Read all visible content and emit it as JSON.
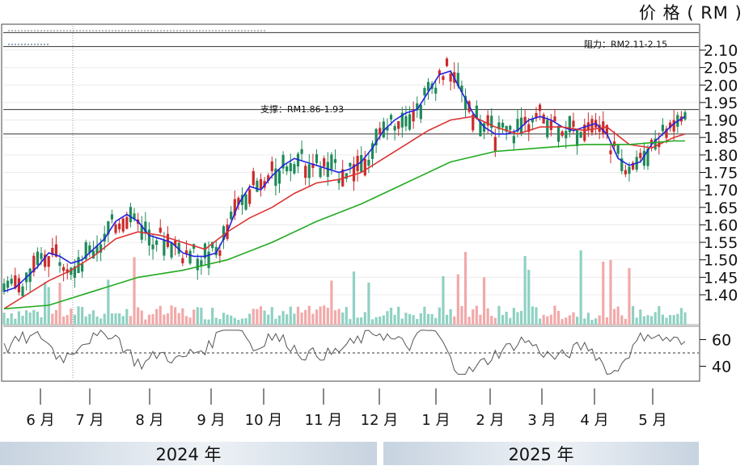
{
  "unit_label": "价 格 ( RM )",
  "years": [
    "2024 年",
    "2025 年"
  ],
  "chart_data": {
    "type": "line",
    "title": "",
    "ylabel": "价 格 ( RM )",
    "ylim": [
      1.35,
      2.15
    ],
    "y_ticks": [
      "2.10",
      "2.05",
      "2.00",
      "1.95",
      "1.90",
      "1.85",
      "1.80",
      "1.75",
      "1.70",
      "1.65",
      "1.60",
      "1.55",
      "1.50",
      "1.45",
      "1.40"
    ],
    "months": [
      "6 月",
      "7 月",
      "8 月",
      "9 月",
      "10 月",
      "11 月",
      "12 月",
      "1 月",
      "2 月",
      "3 月",
      "4 月",
      "5 月"
    ],
    "grid": true,
    "series": [
      {
        "name": "",
        "color": "#2222dd",
        "x": [
          0,
          3,
          6,
          9,
          12,
          15,
          18,
          21,
          24,
          27,
          30,
          33,
          36,
          39,
          42,
          45,
          48,
          51,
          54,
          57,
          60,
          63,
          66,
          69,
          72,
          75,
          78,
          81,
          84,
          87,
          90,
          93,
          96,
          99,
          102,
          105,
          108,
          111,
          114,
          117,
          120,
          123,
          126,
          129,
          132,
          135,
          138,
          141,
          144,
          147,
          150,
          153,
          156,
          159,
          162,
          165,
          168,
          171,
          174,
          177,
          180,
          183
        ],
        "values": [
          1.41,
          1.42,
          1.45,
          1.48,
          1.52,
          1.51,
          1.49,
          1.5,
          1.53,
          1.56,
          1.61,
          1.63,
          1.61,
          1.57,
          1.56,
          1.55,
          1.52,
          1.51,
          1.51,
          1.52,
          1.58,
          1.66,
          1.71,
          1.7,
          1.74,
          1.77,
          1.79,
          1.78,
          1.77,
          1.76,
          1.75,
          1.76,
          1.78,
          1.82,
          1.87,
          1.9,
          1.92,
          1.93,
          1.98,
          2.03,
          2.04,
          1.98,
          1.92,
          1.88,
          1.86,
          1.86,
          1.87,
          1.9,
          1.91,
          1.9,
          1.88,
          1.87,
          1.88,
          1.89,
          1.86,
          1.79,
          1.77,
          1.78,
          1.83,
          1.86,
          1.89,
          1.91
        ]
      },
      {
        "name": "",
        "color": "#dd3333",
        "x": [
          0,
          6,
          12,
          18,
          24,
          30,
          36,
          42,
          48,
          54,
          60,
          66,
          72,
          78,
          84,
          90,
          96,
          102,
          108,
          114,
          120,
          126,
          132,
          138,
          144,
          150,
          156,
          162,
          168,
          174,
          180,
          183
        ],
        "values": [
          1.36,
          1.4,
          1.44,
          1.47,
          1.51,
          1.56,
          1.58,
          1.57,
          1.55,
          1.53,
          1.58,
          1.62,
          1.65,
          1.69,
          1.72,
          1.73,
          1.75,
          1.79,
          1.83,
          1.87,
          1.9,
          1.91,
          1.88,
          1.86,
          1.88,
          1.88,
          1.87,
          1.88,
          1.83,
          1.82,
          1.85,
          1.86
        ]
      },
      {
        "name": "",
        "color": "#22aa22",
        "x": [
          0,
          12,
          24,
          36,
          48,
          60,
          72,
          84,
          96,
          108,
          120,
          132,
          144,
          156,
          168,
          180,
          183
        ],
        "values": [
          1.36,
          1.37,
          1.41,
          1.45,
          1.47,
          1.5,
          1.55,
          1.61,
          1.66,
          1.72,
          1.78,
          1.81,
          1.82,
          1.83,
          1.83,
          1.84,
          1.84
        ]
      }
    ],
    "annotations": [
      "阻力：RM2.11-2.15",
      "支撑：RM1.86-1.93"
    ],
    "resistance_band": [
      2.11,
      2.15
    ],
    "support_band": [
      1.86,
      1.93
    ],
    "indicator": {
      "y_ticks": [
        "60",
        "40"
      ],
      "reference_line": 50
    }
  }
}
